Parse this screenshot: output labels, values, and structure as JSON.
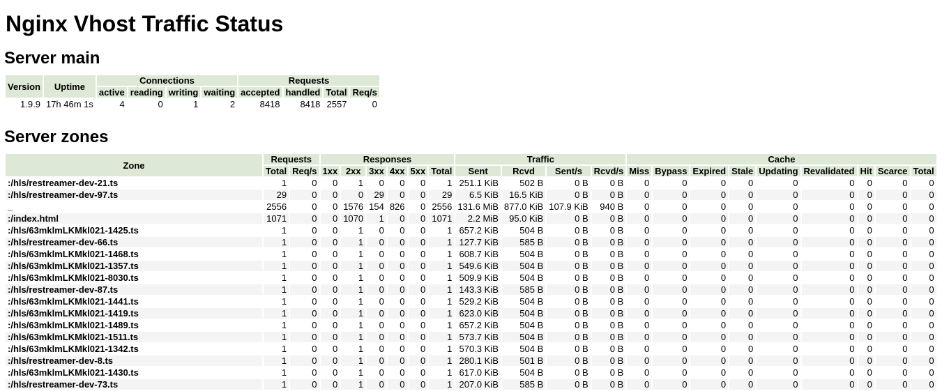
{
  "page": {
    "title": "Nginx Vhost Traffic Status"
  },
  "server_main": {
    "heading": "Server main",
    "headers": {
      "version": "Version",
      "uptime": "Uptime",
      "connections": "Connections",
      "requests": "Requests",
      "active": "active",
      "reading": "reading",
      "writing": "writing",
      "waiting": "waiting",
      "accepted": "accepted",
      "handled": "handled",
      "total": "Total",
      "reqs": "Req/s"
    },
    "row": [
      "1.9.9",
      "17h 46m 1s",
      "4",
      "0",
      "1",
      "2",
      "8418",
      "8418",
      "2557",
      "0"
    ]
  },
  "server_zones": {
    "heading": "Server zones",
    "headers": {
      "zone": "Zone",
      "requests": "Requests",
      "responses": "Responses",
      "traffic": "Traffic",
      "cache": "Cache",
      "columns": [
        "Total",
        "Req/s",
        "1xx",
        "2xx",
        "3xx",
        "4xx",
        "5xx",
        "Total",
        "Sent",
        "Rcvd",
        "Sent/s",
        "Rcvd/s",
        "Miss",
        "Bypass",
        "Expired",
        "Stale",
        "Updating",
        "Revalidated",
        "Hit",
        "Scarce",
        "Total"
      ]
    },
    "rows": [
      [
        ":/hls/restreamer-dev-21.ts",
        "1",
        "0",
        "0",
        "1",
        "0",
        "0",
        "0",
        "1",
        "251.1 KiB",
        "502 B",
        "0 B",
        "0 B",
        "0",
        "0",
        "0",
        "0",
        "0",
        "0",
        "0",
        "0",
        "0"
      ],
      [
        ":/hls/restreamer-dev-97.ts",
        "29",
        "0",
        "0",
        "0",
        "29",
        "0",
        "0",
        "29",
        "6.5 KiB",
        "16.5 KiB",
        "0 B",
        "0 B",
        "0",
        "0",
        "0",
        "0",
        "0",
        "0",
        "0",
        "0",
        "0"
      ],
      [
        "_",
        "2556",
        "0",
        "0",
        "1576",
        "154",
        "826",
        "0",
        "2556",
        "131.6 MiB",
        "877.0 KiB",
        "107.9 KiB",
        "940 B",
        "0",
        "0",
        "0",
        "0",
        "0",
        "0",
        "0",
        "0",
        "0"
      ],
      [
        ":/index.html",
        "1071",
        "0",
        "0",
        "1070",
        "1",
        "0",
        "0",
        "1071",
        "2.2 MiB",
        "95.0 KiB",
        "0 B",
        "0 B",
        "0",
        "0",
        "0",
        "0",
        "0",
        "0",
        "0",
        "0",
        "0"
      ],
      [
        ":/hls/63mklmLKMkl021-1425.ts",
        "1",
        "0",
        "0",
        "1",
        "0",
        "0",
        "0",
        "1",
        "657.2 KiB",
        "504 B",
        "0 B",
        "0 B",
        "0",
        "0",
        "0",
        "0",
        "0",
        "0",
        "0",
        "0",
        "0"
      ],
      [
        ":/hls/restreamer-dev-66.ts",
        "1",
        "0",
        "0",
        "1",
        "0",
        "0",
        "0",
        "1",
        "127.7 KiB",
        "585 B",
        "0 B",
        "0 B",
        "0",
        "0",
        "0",
        "0",
        "0",
        "0",
        "0",
        "0",
        "0"
      ],
      [
        ":/hls/63mklmLKMkl021-1468.ts",
        "1",
        "0",
        "0",
        "1",
        "0",
        "0",
        "0",
        "1",
        "608.7 KiB",
        "504 B",
        "0 B",
        "0 B",
        "0",
        "0",
        "0",
        "0",
        "0",
        "0",
        "0",
        "0",
        "0"
      ],
      [
        ":/hls/63mklmLKMkl021-1357.ts",
        "1",
        "0",
        "0",
        "1",
        "0",
        "0",
        "0",
        "1",
        "549.6 KiB",
        "504 B",
        "0 B",
        "0 B",
        "0",
        "0",
        "0",
        "0",
        "0",
        "0",
        "0",
        "0",
        "0"
      ],
      [
        ":/hls/63mklmLKMkl021-8030.ts",
        "1",
        "0",
        "0",
        "1",
        "0",
        "0",
        "0",
        "1",
        "509.9 KiB",
        "504 B",
        "0 B",
        "0 B",
        "0",
        "0",
        "0",
        "0",
        "0",
        "0",
        "0",
        "0",
        "0"
      ],
      [
        ":/hls/restreamer-dev-87.ts",
        "1",
        "0",
        "0",
        "1",
        "0",
        "0",
        "0",
        "1",
        "143.3 KiB",
        "585 B",
        "0 B",
        "0 B",
        "0",
        "0",
        "0",
        "0",
        "0",
        "0",
        "0",
        "0",
        "0"
      ],
      [
        ":/hls/63mklmLKMkl021-1441.ts",
        "1",
        "0",
        "0",
        "1",
        "0",
        "0",
        "0",
        "1",
        "529.2 KiB",
        "504 B",
        "0 B",
        "0 B",
        "0",
        "0",
        "0",
        "0",
        "0",
        "0",
        "0",
        "0",
        "0"
      ],
      [
        ":/hls/63mklmLKMkl021-1419.ts",
        "1",
        "0",
        "0",
        "1",
        "0",
        "0",
        "0",
        "1",
        "623.0 KiB",
        "504 B",
        "0 B",
        "0 B",
        "0",
        "0",
        "0",
        "0",
        "0",
        "0",
        "0",
        "0",
        "0"
      ],
      [
        ":/hls/63mklmLKMkl021-1489.ts",
        "1",
        "0",
        "0",
        "1",
        "0",
        "0",
        "0",
        "1",
        "657.2 KiB",
        "504 B",
        "0 B",
        "0 B",
        "0",
        "0",
        "0",
        "0",
        "0",
        "0",
        "0",
        "0",
        "0"
      ],
      [
        ":/hls/63mklmLKMkl021-1511.ts",
        "1",
        "0",
        "0",
        "1",
        "0",
        "0",
        "0",
        "1",
        "573.7 KiB",
        "504 B",
        "0 B",
        "0 B",
        "0",
        "0",
        "0",
        "0",
        "0",
        "0",
        "0",
        "0",
        "0"
      ],
      [
        ":/hls/63mklmLKMkl021-1342.ts",
        "1",
        "0",
        "0",
        "1",
        "0",
        "0",
        "0",
        "1",
        "570.3 KiB",
        "504 B",
        "0 B",
        "0 B",
        "0",
        "0",
        "0",
        "0",
        "0",
        "0",
        "0",
        "0",
        "0"
      ],
      [
        ":/hls/restreamer-dev-8.ts",
        "1",
        "0",
        "0",
        "1",
        "0",
        "0",
        "0",
        "1",
        "280.1 KiB",
        "501 B",
        "0 B",
        "0 B",
        "0",
        "0",
        "0",
        "0",
        "0",
        "0",
        "0",
        "0",
        "0"
      ],
      [
        ":/hls/63mklmLKMkl021-1430.ts",
        "1",
        "0",
        "0",
        "1",
        "0",
        "0",
        "0",
        "1",
        "617.0 KiB",
        "504 B",
        "0 B",
        "0 B",
        "0",
        "0",
        "0",
        "0",
        "0",
        "0",
        "0",
        "0",
        "0"
      ],
      [
        ":/hls/restreamer-dev-73.ts",
        "1",
        "0",
        "0",
        "1",
        "0",
        "0",
        "0",
        "1",
        "207.0 KiB",
        "585 B",
        "0 B",
        "0 B",
        "0",
        "0",
        "0",
        "0",
        "0",
        "0",
        "0",
        "0",
        "0"
      ]
    ]
  }
}
